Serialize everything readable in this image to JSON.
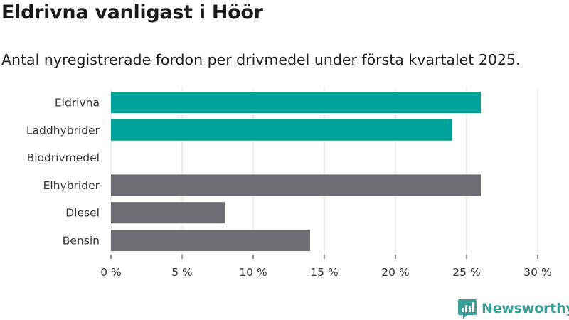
{
  "title": "Eldrivna vanligast i Höör",
  "subtitle": "Antal nyregistrerade fordon per drivmedel under första kvartalet 2025.",
  "brand": {
    "name": "Newsworthy",
    "logo": "newsworthy-chart-logo"
  },
  "colors": {
    "highlight": "#00a39a",
    "other": "#6e6d73",
    "grid": "#dddddd",
    "brand": "#3a9f97"
  },
  "chart_data": {
    "type": "bar",
    "orientation": "horizontal",
    "categories": [
      "Eldrivna",
      "Laddhybrider",
      "Biodrivmedel",
      "Elhybrider",
      "Diesel",
      "Bensin"
    ],
    "values": [
      26,
      24,
      0,
      26,
      8,
      14
    ],
    "highlight": [
      true,
      true,
      true,
      false,
      false,
      false
    ],
    "xlim": [
      0,
      30
    ],
    "xticks": [
      0,
      5,
      10,
      15,
      20,
      25,
      30
    ],
    "xtick_labels": [
      "0 %",
      "5 %",
      "10 %",
      "15 %",
      "20 %",
      "25 %",
      "30 %"
    ],
    "grid": true
  }
}
